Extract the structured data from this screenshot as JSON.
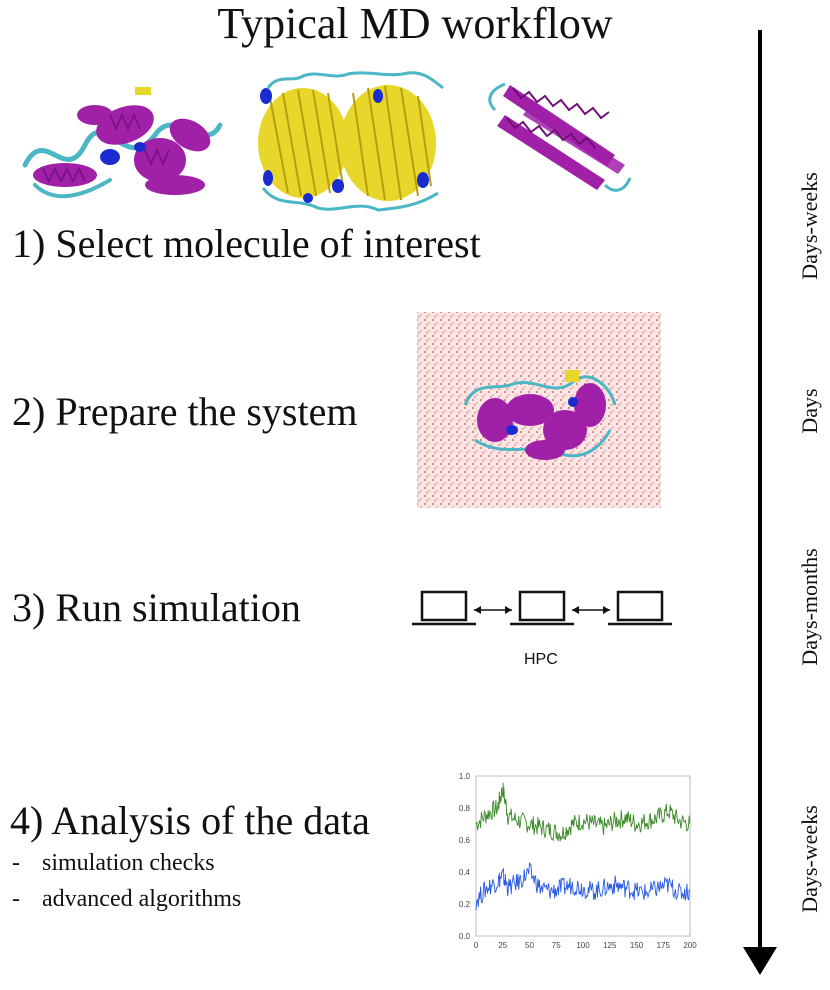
{
  "title": "Typical MD workflow",
  "steps": [
    {
      "label": "1) Select molecule of interest"
    },
    {
      "label": "2) Prepare the system"
    },
    {
      "label": "3) Run simulation"
    },
    {
      "label": "4) Analysis of the data",
      "bullets": [
        "simulation checks",
        "advanced algorithms"
      ]
    }
  ],
  "durations": [
    "Days-weeks",
    "Days",
    "Days-months",
    "Days-weeks"
  ],
  "hpc_label": "HPC",
  "bullet_marker": "-",
  "plot": {
    "y_ticks": [
      "1.0",
      "0.8",
      "0.6",
      "0.4",
      "0.2",
      "0.0"
    ],
    "x_ticks": [
      "0",
      "25",
      "50",
      "75",
      "100",
      "125",
      "150",
      "175",
      "200"
    ]
  },
  "colors": {
    "protein_helix": "#a020a8",
    "beta_sheet": "#e8d62a",
    "coil": "#4bb6c4",
    "accent_blue": "#1a2bd0",
    "solvent": "#f2b8b8",
    "series_green": "#3d8a2a",
    "series_blue": "#2a5ae0"
  },
  "chart_data": {
    "type": "line",
    "x": [
      0,
      10,
      20,
      25,
      30,
      40,
      50,
      60,
      70,
      80,
      90,
      100,
      110,
      120,
      130,
      140,
      150,
      160,
      170,
      180,
      190,
      200
    ],
    "xlim": [
      0,
      200
    ],
    "ylim": [
      0,
      1.0
    ],
    "series": [
      {
        "values": [
          0.7,
          0.76,
          0.8,
          0.92,
          0.75,
          0.72,
          0.7,
          0.68,
          0.66,
          0.64,
          0.7,
          0.72,
          0.7,
          0.68,
          0.72,
          0.74,
          0.7,
          0.72,
          0.74,
          0.78,
          0.72,
          0.7
        ]
      },
      {
        "values": [
          0.22,
          0.3,
          0.34,
          0.38,
          0.3,
          0.34,
          0.4,
          0.3,
          0.28,
          0.3,
          0.32,
          0.3,
          0.28,
          0.3,
          0.32,
          0.3,
          0.28,
          0.27,
          0.3,
          0.32,
          0.27,
          0.28
        ]
      }
    ]
  }
}
